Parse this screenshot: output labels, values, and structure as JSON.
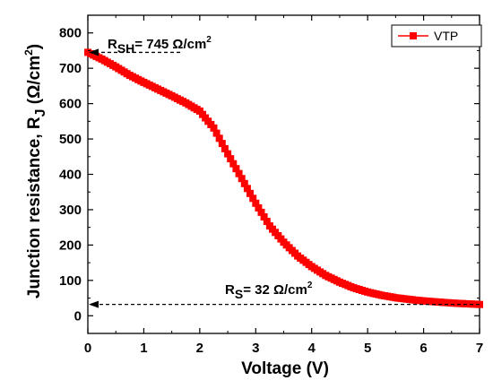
{
  "chart_data": {
    "type": "scatter",
    "xlabel": "Voltage (V)",
    "ylabel": "Junction resistance, R",
    "ylabel_sub": "J",
    "ylabel_unit": "(Ω/cm",
    "ylabel_unit_sup": "2",
    "ylabel_unit_end": ")",
    "xlim": [
      0,
      7
    ],
    "ylim": [
      -50,
      850
    ],
    "xticks": [
      "0",
      "1",
      "2",
      "3",
      "4",
      "5",
      "6",
      "7"
    ],
    "yticks": [
      "0",
      "100",
      "200",
      "300",
      "400",
      "500",
      "600",
      "700",
      "800"
    ],
    "grid": false,
    "legend_position": "top-right",
    "series": [
      {
        "name": "VTP",
        "color": "#ff0000",
        "marker": "square",
        "x": [
          0.0,
          0.25,
          0.5,
          0.75,
          1.0,
          1.25,
          1.5,
          1.75,
          2.0,
          2.25,
          2.5,
          2.75,
          3.0,
          3.25,
          3.5,
          3.75,
          4.0,
          4.25,
          4.5,
          4.75,
          5.0,
          5.25,
          5.5,
          5.75,
          6.0,
          6.25,
          6.5,
          6.75,
          7.0
        ],
        "y": [
          745,
          726,
          704,
          680,
          660,
          641,
          622,
          602,
          579,
          531,
          458,
          388,
          318,
          254,
          208,
          169,
          139,
          114,
          95,
          79,
          67,
          58,
          51,
          46,
          42,
          39,
          36,
          34,
          32
        ]
      }
    ],
    "annotations": [
      {
        "label_main": "R",
        "label_sub": "SH",
        "label_rest": "= 745 Ω/cm",
        "label_sup": "2",
        "value": 745,
        "x_end": 1.65
      },
      {
        "label_main": "R",
        "label_sub": "S",
        "label_rest": "= 32 Ω/cm",
        "label_sup": "2",
        "value": 32,
        "x_end": 7
      }
    ]
  }
}
